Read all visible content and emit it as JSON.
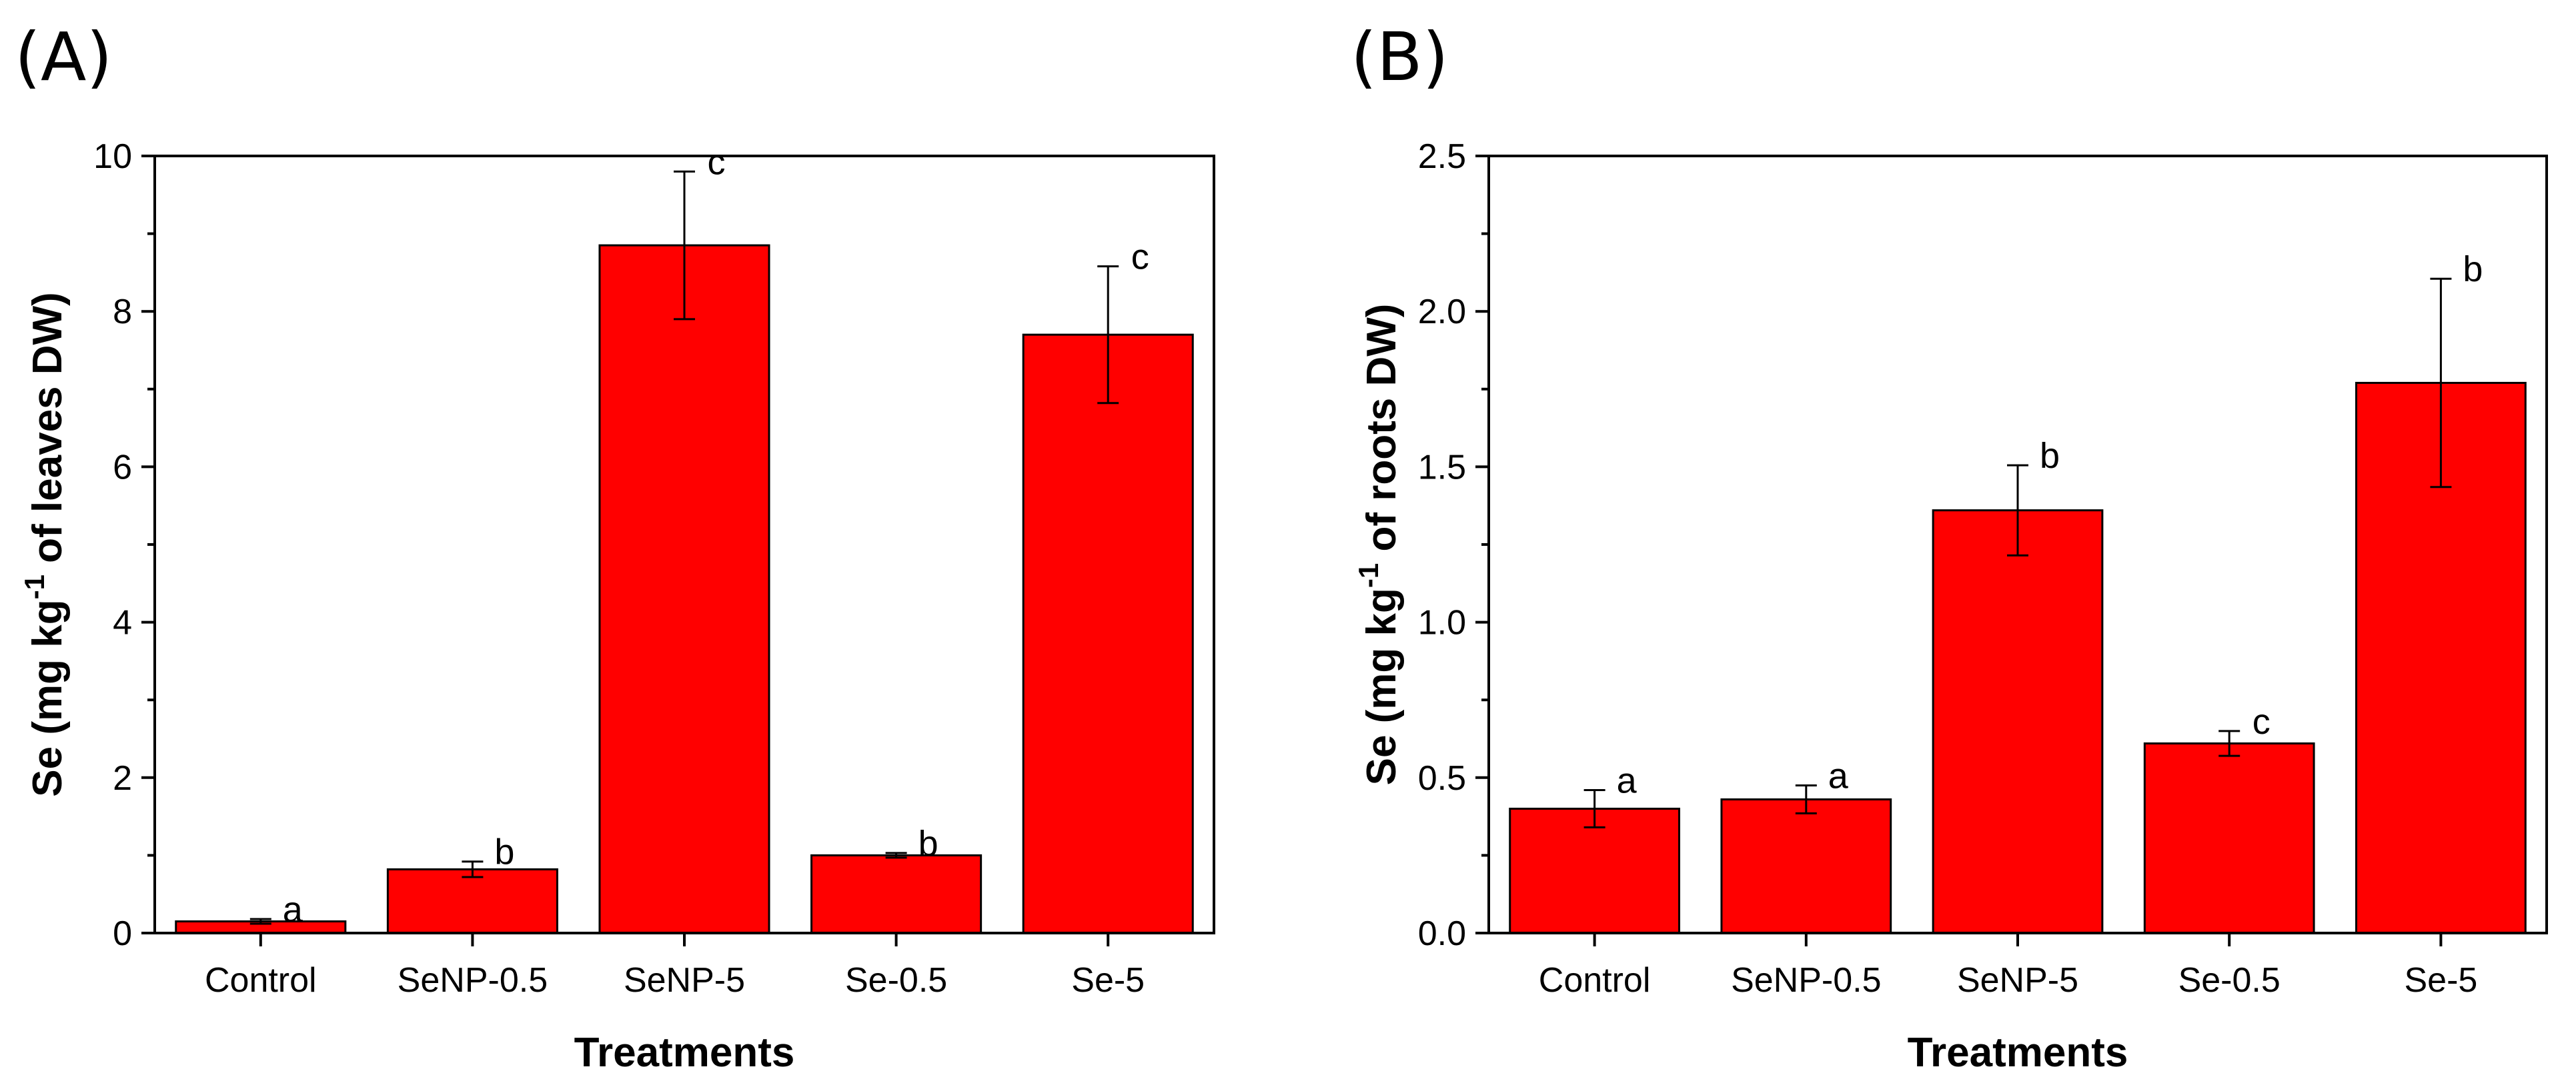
{
  "colors": {
    "bar": "#ff0000",
    "axis": "#000000"
  },
  "chart_data": [
    {
      "panel_label": "(A)",
      "type": "bar",
      "categories": [
        "Control",
        "SeNP-0.5",
        "SeNP-5",
        "Se-0.5",
        "Se-5"
      ],
      "values": [
        0.15,
        0.82,
        8.85,
        1.0,
        7.7
      ],
      "errors": [
        0.03,
        0.1,
        0.95,
        0.03,
        0.88
      ],
      "significance": [
        "a",
        "b",
        "c",
        "b",
        "c"
      ],
      "xlabel": "Treatments",
      "ylabel_pre": "Se (mg kg",
      "ylabel_sup": "-1",
      "ylabel_post": " of leaves DW)",
      "ylim": [
        0,
        10
      ],
      "yticks": [
        0,
        2,
        4,
        6,
        8,
        10
      ],
      "ytick_labels": [
        "0",
        "2",
        "4",
        "6",
        "8",
        "10"
      ]
    },
    {
      "panel_label": "(B)",
      "type": "bar",
      "categories": [
        "Control",
        "SeNP-0.5",
        "SeNP-5",
        "Se-0.5",
        "Se-5"
      ],
      "values": [
        0.4,
        0.43,
        1.36,
        0.61,
        1.77
      ],
      "errors": [
        0.06,
        0.045,
        0.145,
        0.04,
        0.335
      ],
      "significance": [
        "a",
        "a",
        "b",
        "c",
        "b"
      ],
      "xlabel": "Treatments",
      "ylabel_pre": "Se (mg kg",
      "ylabel_sup": "-1",
      "ylabel_post": " of roots DW)",
      "ylim": [
        0,
        2.5
      ],
      "yticks": [
        0,
        0.5,
        1.0,
        1.5,
        2.0,
        2.5
      ],
      "ytick_labels": [
        "0.0",
        "0.5",
        "1.0",
        "1.5",
        "2.0",
        "2.5"
      ]
    }
  ]
}
